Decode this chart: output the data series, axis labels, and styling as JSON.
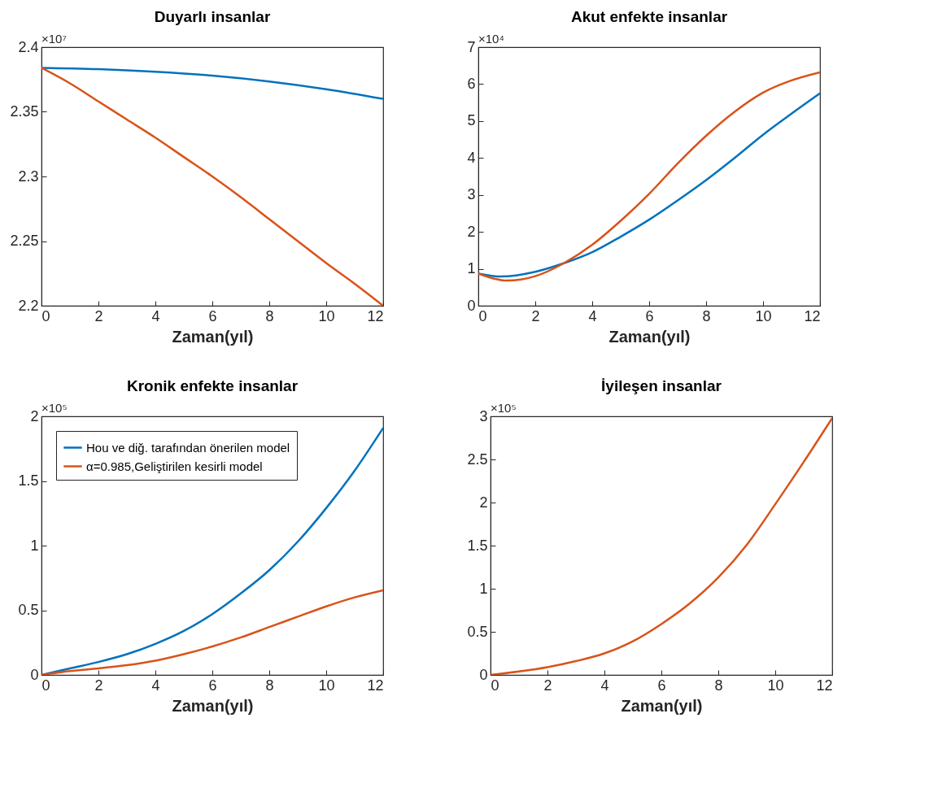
{
  "chart_data": [
    {
      "type": "line",
      "title": "Duyarlı insanlar",
      "xlabel": "Zaman(yıl)",
      "annotations": [
        "×10⁷"
      ],
      "xlim": [
        0,
        12
      ],
      "xticks": [
        0,
        2,
        4,
        6,
        8,
        10,
        12
      ],
      "ylim": [
        2.2,
        2.4
      ],
      "yticks": [
        2.2,
        2.25,
        2.3,
        2.35,
        2.4
      ],
      "series": [
        {
          "color": "#0072bd",
          "x": [
            0,
            2,
            4,
            6,
            8,
            10,
            12
          ],
          "values": [
            2.384,
            2.383,
            2.381,
            2.378,
            2.3735,
            2.3675,
            2.36
          ]
        },
        {
          "color": "#d95319",
          "x": [
            0,
            1,
            2,
            3,
            4,
            5,
            6,
            7,
            8,
            9,
            10,
            11,
            12
          ],
          "values": [
            2.384,
            2.372,
            2.358,
            2.344,
            2.33,
            2.315,
            2.3,
            2.284,
            2.267,
            2.25,
            2.233,
            2.217,
            2.2
          ]
        }
      ]
    },
    {
      "type": "line",
      "title": "Akut enfekte insanlar",
      "xlabel": "Zaman(yıl)",
      "annotations": [
        "×10⁴"
      ],
      "xlim": [
        0,
        12
      ],
      "xticks": [
        0,
        2,
        4,
        6,
        8,
        10,
        12
      ],
      "ylim": [
        0,
        7
      ],
      "yticks": [
        0,
        1,
        2,
        3,
        4,
        5,
        6,
        7
      ],
      "series": [
        {
          "color": "#0072bd",
          "x": [
            0,
            0.8,
            2,
            3,
            4,
            5,
            6,
            7,
            8,
            9,
            10,
            11,
            12
          ],
          "values": [
            0.87,
            0.79,
            0.92,
            1.15,
            1.45,
            1.87,
            2.33,
            2.85,
            3.4,
            4.0,
            4.63,
            5.2,
            5.75
          ]
        },
        {
          "color": "#d95319",
          "x": [
            0,
            1,
            2,
            3,
            4,
            5,
            6,
            7,
            8,
            9,
            10,
            11,
            12
          ],
          "values": [
            0.87,
            0.68,
            0.8,
            1.15,
            1.65,
            2.3,
            3.03,
            3.85,
            4.6,
            5.25,
            5.77,
            6.1,
            6.32
          ]
        }
      ]
    },
    {
      "type": "line",
      "title": "Kronik enfekte insanlar",
      "xlabel": "Zaman(yıl)",
      "annotations": [
        "×10⁵"
      ],
      "legend": "top left",
      "xlim": [
        0,
        12
      ],
      "xticks": [
        0,
        2,
        4,
        6,
        8,
        10,
        12
      ],
      "ylim": [
        0,
        2
      ],
      "yticks": [
        0,
        0.5,
        1,
        1.5,
        2
      ],
      "series": [
        {
          "name": "Hou ve diğ. tarafından önerilen model",
          "color": "#0072bd",
          "x": [
            0,
            1,
            2,
            3,
            4,
            5,
            6,
            7,
            8,
            9,
            10,
            11,
            12
          ],
          "values": [
            0,
            0.05,
            0.1,
            0.16,
            0.24,
            0.34,
            0.47,
            0.63,
            0.81,
            1.03,
            1.29,
            1.58,
            1.91
          ]
        },
        {
          "name": "α=0.985,Geliştirilen kesirli model",
          "color": "#d95319",
          "x": [
            0,
            1,
            2,
            3,
            4,
            5,
            6,
            7,
            8,
            9,
            10,
            11,
            12
          ],
          "values": [
            0,
            0.03,
            0.05,
            0.075,
            0.11,
            0.16,
            0.22,
            0.29,
            0.37,
            0.45,
            0.53,
            0.6,
            0.655
          ]
        }
      ]
    },
    {
      "type": "line",
      "title": "İyileşen insanlar",
      "xlabel": "Zaman(yıl)",
      "annotations": [
        "×10⁵"
      ],
      "xlim": [
        0,
        12
      ],
      "xticks": [
        0,
        2,
        4,
        6,
        8,
        10,
        12
      ],
      "ylim": [
        0,
        3
      ],
      "yticks": [
        0,
        0.5,
        1,
        1.5,
        2,
        2.5,
        3
      ],
      "series": [
        {
          "color": "#d95319",
          "x": [
            0,
            1,
            2,
            3,
            4,
            5,
            6,
            7,
            8,
            9,
            10,
            11,
            12
          ],
          "values": [
            0,
            0.04,
            0.09,
            0.16,
            0.25,
            0.39,
            0.59,
            0.83,
            1.13,
            1.51,
            1.98,
            2.47,
            2.98
          ]
        }
      ]
    }
  ]
}
